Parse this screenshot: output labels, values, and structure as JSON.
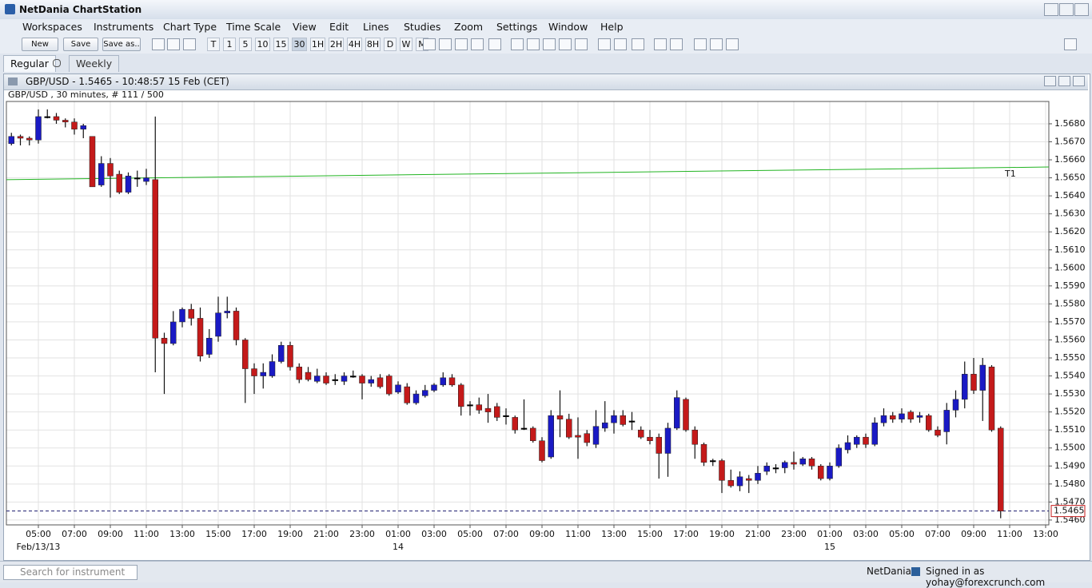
{
  "window": {
    "title": "NetDania ChartStation",
    "menu": [
      "Workspaces",
      "Instruments",
      "Chart Type",
      "Time Scale",
      "View",
      "Edit",
      "Lines",
      "Studies",
      "Zoom",
      "Settings",
      "Window",
      "Help"
    ],
    "toolbar_buttons": [
      "New",
      "Save",
      "Save as.."
    ],
    "interval_buttons": [
      "T",
      "1",
      "5",
      "10",
      "15",
      "30",
      "1H",
      "2H",
      "4H",
      "8H",
      "D",
      "W",
      "M"
    ],
    "tabs": [
      "Regular",
      "Weekly"
    ],
    "search_placeholder": "Search for instrument",
    "status_brand": "NetDania",
    "status_signed_in": "Signed in as yohay@forexcrunch.com"
  },
  "chart_data": {
    "type": "candlestick",
    "title": "GBP/USD - 1.5465 - 10:48:57  15 Feb (CET)",
    "subtitle": "GBP/USD , 30 minutes, # 111 / 500",
    "x": [
      3.5,
      4,
      4.5,
      5,
      5.5,
      6,
      6.5,
      7,
      7.5,
      8,
      8.5,
      9,
      9.5,
      10,
      10.5,
      11,
      11.5,
      12,
      12.5,
      13,
      13.5,
      14,
      14.5,
      15,
      15.5,
      16,
      16.5,
      17,
      17.5,
      18,
      18.5,
      19,
      19.5,
      20,
      20.5,
      21,
      21.5,
      22,
      22.5,
      23,
      23.5,
      24,
      24.5,
      25,
      25.5,
      26,
      26.5,
      27,
      27.5,
      28,
      28.5,
      29,
      29.5,
      30,
      30.5,
      31,
      31.5,
      32,
      32.5,
      33,
      33.5,
      34,
      34.5,
      35,
      35.5,
      36,
      36.5,
      37,
      37.5,
      38,
      38.5,
      39,
      39.5,
      40,
      40.5,
      41,
      41.5,
      42,
      42.5,
      43,
      43.5,
      44,
      44.5,
      45,
      45.5,
      46,
      46.5,
      47,
      47.5,
      48,
      48.5,
      49,
      49.5,
      50,
      50.5,
      51,
      51.5,
      52,
      52.5,
      53,
      53.5,
      54,
      54.5,
      55,
      55.5,
      56,
      56.5,
      57,
      57.5,
      58,
      58.5
    ],
    "open": [
      1.5669,
      1.5673,
      1.5672,
      1.5671,
      1.5684,
      1.5684,
      1.5682,
      1.5681,
      1.5677,
      1.5673,
      1.5646,
      1.5658,
      1.5652,
      1.5642,
      1.565,
      1.5648,
      1.5649,
      1.5561,
      1.5558,
      1.557,
      1.5577,
      1.5572,
      1.5552,
      1.5562,
      1.5575,
      1.5576,
      1.556,
      1.5544,
      1.554,
      1.554,
      1.5548,
      1.5557,
      1.5545,
      1.5542,
      1.5537,
      1.554,
      1.5538,
      1.5537,
      1.554,
      1.554,
      1.5536,
      1.5539,
      1.554,
      1.5531,
      1.5534,
      1.5525,
      1.5529,
      1.5532,
      1.5535,
      1.5539,
      1.5535,
      1.5524,
      1.5524,
      1.5522,
      1.5523,
      1.5518,
      1.5517,
      1.5511,
      1.5511,
      1.5504,
      1.5495,
      1.5518,
      1.5516,
      1.5507,
      1.5508,
      1.5502,
      1.5511,
      1.5514,
      1.5518,
      1.5515,
      1.551,
      1.5506,
      1.5506,
      1.5497,
      1.5511,
      1.5527,
      1.551,
      1.5502,
      1.5493,
      1.5493,
      1.5482,
      1.5479,
      1.5483,
      1.5482,
      1.5487,
      1.5489,
      1.5489,
      1.5492,
      1.5491,
      1.5494,
      1.549,
      1.5483,
      1.549,
      1.5499,
      1.5502,
      1.5506,
      1.5502,
      1.5514,
      1.5518,
      1.5516,
      1.552,
      1.5517,
      1.5518,
      1.551,
      1.5509,
      1.5521,
      1.5527,
      1.5541,
      1.5532,
      1.5545,
      1.5511
    ],
    "high": [
      1.5675,
      1.5674,
      1.5673,
      1.5688,
      1.5688,
      1.5686,
      1.5683,
      1.5683,
      1.568,
      1.5673,
      1.5662,
      1.5661,
      1.5654,
      1.5653,
      1.5654,
      1.5655,
      1.5684,
      1.5564,
      1.5576,
      1.5578,
      1.558,
      1.5578,
      1.5566,
      1.5584,
      1.5584,
      1.5578,
      1.5561,
      1.5547,
      1.5547,
      1.5552,
      1.5559,
      1.5559,
      1.5547,
      1.5545,
      1.5544,
      1.5542,
      1.5541,
      1.5542,
      1.5543,
      1.5541,
      1.554,
      1.5541,
      1.5541,
      1.5537,
      1.5536,
      1.5532,
      1.5535,
      1.5536,
      1.5542,
      1.5541,
      1.5536,
      1.5526,
      1.5528,
      1.553,
      1.5525,
      1.5522,
      1.5518,
      1.5527,
      1.5512,
      1.5506,
      1.5521,
      1.5532,
      1.5519,
      1.5517,
      1.551,
      1.5521,
      1.5526,
      1.5521,
      1.5521,
      1.552,
      1.5512,
      1.551,
      1.5508,
      1.5514,
      1.5532,
      1.5528,
      1.5512,
      1.5503,
      1.5494,
      1.5494,
      1.5488,
      1.5487,
      1.5485,
      1.549,
      1.5492,
      1.5491,
      1.5493,
      1.5498,
      1.5495,
      1.5495,
      1.5491,
      1.5492,
      1.5502,
      1.5507,
      1.5507,
      1.5508,
      1.5517,
      1.5522,
      1.552,
      1.5522,
      1.5521,
      1.552,
      1.5519,
      1.5512,
      1.5525,
      1.5532,
      1.5548,
      1.555,
      1.555,
      1.5546,
      1.5512
    ],
    "low": [
      1.5668,
      1.5668,
      1.5668,
      1.5669,
      1.5683,
      1.568,
      1.5678,
      1.5674,
      1.5672,
      1.5645,
      1.5645,
      1.5639,
      1.5641,
      1.5641,
      1.5645,
      1.5646,
      1.5542,
      1.553,
      1.5557,
      1.5567,
      1.5568,
      1.5548,
      1.555,
      1.5559,
      1.5572,
      1.5557,
      1.5525,
      1.553,
      1.5533,
      1.5539,
      1.5547,
      1.5543,
      1.5536,
      1.5537,
      1.5536,
      1.5535,
      1.5535,
      1.5535,
      1.5539,
      1.5527,
      1.5534,
      1.5533,
      1.5529,
      1.553,
      1.5524,
      1.5524,
      1.5528,
      1.5531,
      1.5534,
      1.5534,
      1.5518,
      1.5518,
      1.5519,
      1.5514,
      1.5515,
      1.5513,
      1.5508,
      1.551,
      1.5503,
      1.5492,
      1.5494,
      1.5506,
      1.5505,
      1.5494,
      1.5501,
      1.55,
      1.5509,
      1.5508,
      1.5512,
      1.551,
      1.5505,
      1.5502,
      1.5483,
      1.5484,
      1.551,
      1.5509,
      1.5494,
      1.549,
      1.549,
      1.5475,
      1.5478,
      1.5476,
      1.5475,
      1.548,
      1.5485,
      1.5486,
      1.5486,
      1.5488,
      1.549,
      1.5488,
      1.5482,
      1.5482,
      1.5489,
      1.5497,
      1.55,
      1.55,
      1.5501,
      1.5512,
      1.5514,
      1.5514,
      1.5514,
      1.5514,
      1.5509,
      1.5506,
      1.5502,
      1.5517,
      1.5522,
      1.553,
      1.5515,
      1.5509,
      1.5461
    ],
    "close": [
      1.5673,
      1.5672,
      1.5671,
      1.5684,
      1.5684,
      1.5682,
      1.5681,
      1.5677,
      1.5679,
      1.5645,
      1.5658,
      1.5651,
      1.5642,
      1.5651,
      1.565,
      1.565,
      1.5561,
      1.5558,
      1.557,
      1.5577,
      1.5572,
      1.5551,
      1.5561,
      1.5575,
      1.5576,
      1.556,
      1.5544,
      1.554,
      1.5542,
      1.5548,
      1.5557,
      1.5545,
      1.5538,
      1.5538,
      1.554,
      1.5536,
      1.5538,
      1.554,
      1.554,
      1.5536,
      1.5538,
      1.5534,
      1.553,
      1.5535,
      1.5525,
      1.553,
      1.5532,
      1.5535,
      1.5539,
      1.5535,
      1.5523,
      1.5524,
      1.5521,
      1.552,
      1.5517,
      1.5518,
      1.551,
      1.5511,
      1.5504,
      1.5493,
      1.5518,
      1.5516,
      1.5506,
      1.5506,
      1.5503,
      1.5512,
      1.5514,
      1.5518,
      1.5513,
      1.5515,
      1.5506,
      1.5504,
      1.5497,
      1.5511,
      1.5528,
      1.551,
      1.5502,
      1.5492,
      1.5493,
      1.5482,
      1.5479,
      1.5484,
      1.5482,
      1.5486,
      1.549,
      1.5489,
      1.5492,
      1.5491,
      1.5494,
      1.549,
      1.5483,
      1.549,
      1.55,
      1.5503,
      1.5506,
      1.5502,
      1.5514,
      1.5518,
      1.5516,
      1.5519,
      1.5516,
      1.5518,
      1.551,
      1.5507,
      1.5521,
      1.5527,
      1.5541,
      1.5532,
      1.5546,
      1.551,
      1.5465
    ],
    "up_color": "#1a1ac4",
    "down_color": "#c41a1a",
    "flat_color": "#000000",
    "xlim": [
      3.222,
      61.178
    ],
    "xticks": [
      {
        "value": 5,
        "label": "05:00"
      },
      {
        "value": 7,
        "label": "07:00"
      },
      {
        "value": 9,
        "label": "09:00"
      },
      {
        "value": 11,
        "label": "11:00"
      },
      {
        "value": 13,
        "label": "13:00"
      },
      {
        "value": 15,
        "label": "15:00"
      },
      {
        "value": 17,
        "label": "17:00"
      },
      {
        "value": 19,
        "label": "19:00"
      },
      {
        "value": 21,
        "label": "21:00"
      },
      {
        "value": 23,
        "label": "23:00"
      },
      {
        "value": 25,
        "label": "01:00"
      },
      {
        "value": 27,
        "label": "03:00"
      },
      {
        "value": 29,
        "label": "05:00"
      },
      {
        "value": 31,
        "label": "07:00"
      },
      {
        "value": 33,
        "label": "09:00"
      },
      {
        "value": 35,
        "label": "11:00"
      },
      {
        "value": 37,
        "label": "13:00"
      },
      {
        "value": 39,
        "label": "15:00"
      },
      {
        "value": 41,
        "label": "17:00"
      },
      {
        "value": 43,
        "label": "19:00"
      },
      {
        "value": 45,
        "label": "21:00"
      },
      {
        "value": 47,
        "label": "23:00"
      },
      {
        "value": 49,
        "label": "01:00"
      },
      {
        "value": 51,
        "label": "03:00"
      },
      {
        "value": 53,
        "label": "05:00"
      },
      {
        "value": 55,
        "label": "07:00"
      },
      {
        "value": 57,
        "label": "09:00"
      },
      {
        "value": 59,
        "label": "11:00"
      },
      {
        "value": 61,
        "label": "13:00"
      }
    ],
    "date_labels": [
      {
        "value": 5,
        "label": "Feb/13/13"
      },
      {
        "value": 25,
        "label": "14"
      },
      {
        "value": 49,
        "label": "15"
      }
    ],
    "ylim": [
      1.54573,
      1.56924
    ],
    "yticks": [
      {
        "value": 1.546,
        "label": "1.5460"
      },
      {
        "value": 1.547,
        "label": "1.5470"
      },
      {
        "value": 1.548,
        "label": "1.5480"
      },
      {
        "value": 1.549,
        "label": "1.5490"
      },
      {
        "value": 1.55,
        "label": "1.5500"
      },
      {
        "value": 1.551,
        "label": "1.5510"
      },
      {
        "value": 1.552,
        "label": "1.5520"
      },
      {
        "value": 1.553,
        "label": "1.5530"
      },
      {
        "value": 1.554,
        "label": "1.5540"
      },
      {
        "value": 1.555,
        "label": "1.5550"
      },
      {
        "value": 1.556,
        "label": "1.5560"
      },
      {
        "value": 1.557,
        "label": "1.5570"
      },
      {
        "value": 1.558,
        "label": "1.5580"
      },
      {
        "value": 1.559,
        "label": "1.5590"
      },
      {
        "value": 1.56,
        "label": "1.5600"
      },
      {
        "value": 1.561,
        "label": "1.5610"
      },
      {
        "value": 1.562,
        "label": "1.5620"
      },
      {
        "value": 1.563,
        "label": "1.5630"
      },
      {
        "value": 1.564,
        "label": "1.5640"
      },
      {
        "value": 1.565,
        "label": "1.5650"
      },
      {
        "value": 1.566,
        "label": "1.5660"
      },
      {
        "value": 1.567,
        "label": "1.5670"
      },
      {
        "value": 1.568,
        "label": "1.5680"
      }
    ],
    "grid": true,
    "trendline": {
      "label": "T1",
      "color": "#22b422",
      "x": [
        3.222,
        61.178
      ],
      "values": [
        1.5649,
        1.5656
      ]
    },
    "last_price": {
      "value": 1.5465,
      "label": "1.5465",
      "color": "#1a1a6e"
    }
  }
}
